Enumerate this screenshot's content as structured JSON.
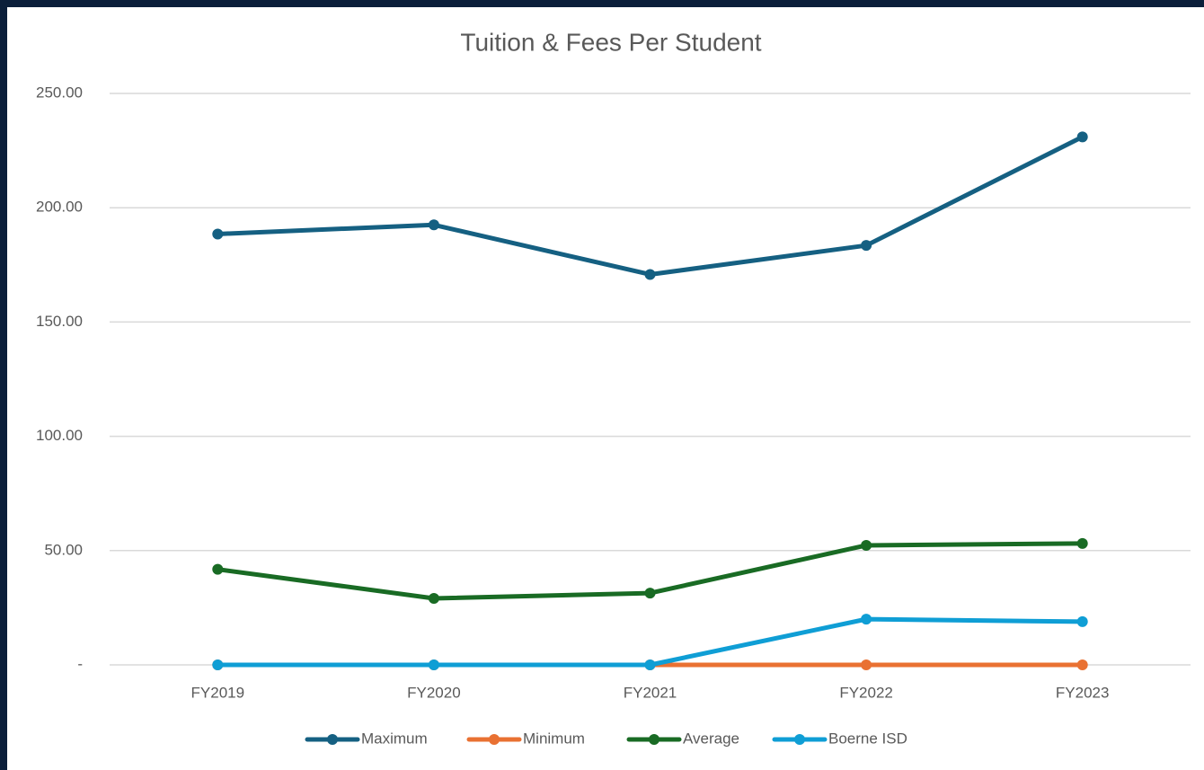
{
  "chart_data": {
    "type": "line",
    "title": "Tuition & Fees Per Student",
    "categories": [
      "FY2019",
      "FY2020",
      "FY2021",
      "FY2022",
      "FY2023"
    ],
    "series": [
      {
        "name": "Maximum",
        "color": "#156082",
        "values": [
          188.5,
          192.5,
          170.8,
          183.5,
          231
        ]
      },
      {
        "name": "Minimum",
        "color": "#e97132",
        "values": [
          0,
          0,
          0,
          0,
          0
        ]
      },
      {
        "name": "Average",
        "color": "#196b24",
        "values": [
          41.8,
          29.1,
          31.4,
          52.3,
          53.1
        ]
      },
      {
        "name": "Boerne ISD",
        "color": "#0f9ed5",
        "values": [
          0,
          0,
          0,
          20,
          18.9
        ]
      }
    ],
    "ylim": [
      0,
      250
    ],
    "yticks": [
      {
        "value": 0,
        "label": "-"
      },
      {
        "value": 50,
        "label": "50.00"
      },
      {
        "value": 100,
        "label": "100.00"
      },
      {
        "value": 150,
        "label": "150.00"
      },
      {
        "value": 200,
        "label": "200.00"
      },
      {
        "value": 250,
        "label": "250.00"
      }
    ],
    "grid": true,
    "legend": "bottom"
  }
}
